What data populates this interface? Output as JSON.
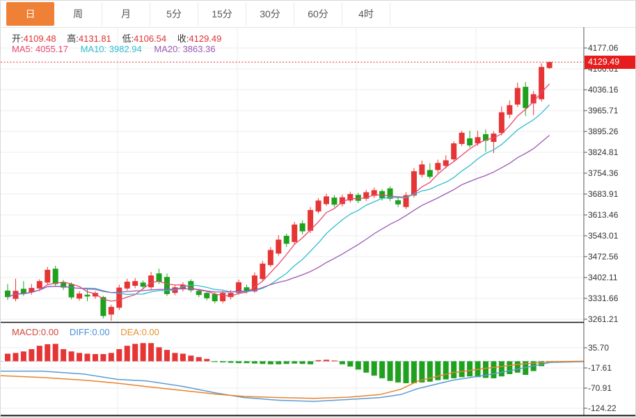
{
  "tabs": [
    {
      "label": "日",
      "name": "tab-day",
      "selected": true
    },
    {
      "label": "周",
      "name": "tab-week",
      "selected": false
    },
    {
      "label": "月",
      "name": "tab-month",
      "selected": false
    },
    {
      "label": "5分",
      "name": "tab-5min",
      "selected": false
    },
    {
      "label": "15分",
      "name": "tab-15min",
      "selected": false
    },
    {
      "label": "30分",
      "name": "tab-30min",
      "selected": false
    },
    {
      "label": "60分",
      "name": "tab-60min",
      "selected": false
    },
    {
      "label": "4时",
      "name": "tab-4hour",
      "selected": false
    }
  ],
  "readouts": {
    "ohlc": {
      "open_label": "开:",
      "open": "4109.48",
      "high_label": "高:",
      "high": "4131.81",
      "low_label": "低:",
      "low": "4106.54",
      "close_label": "收:",
      "close": "4129.49"
    },
    "ma": {
      "ma5": "MA5: 4055.17",
      "ma10": "MA10: 3982.94",
      "ma20": "MA20: 3863.36"
    },
    "macd": {
      "macd": "MACD:0.00",
      "diff": "DIFF:0.00",
      "dea": "DEA:0.00"
    }
  },
  "price_badge": {
    "value": "4129.49"
  },
  "colors": {
    "up": "#e53535",
    "down": "#1fa11f",
    "ma5": "#e8476f",
    "ma10": "#2fbccf",
    "ma20": "#9b59b6",
    "diff_line": "#5b9bd5",
    "dea_line": "#e8832a",
    "accent_tab": "#ef8137",
    "price_line": "#e23030",
    "badge_bg": "#e71c1c",
    "grid": "#ededed",
    "axis": "#555555",
    "zero_dash": "#aac8dc",
    "macd_label": "#d2453a",
    "diff_label": "#4a90d9",
    "dea_label": "#e8902e"
  },
  "chart_data": {
    "type": "candlestick+macd",
    "timeframe": "日",
    "main": {
      "title": "",
      "y_ticks": [
        4177.06,
        4106.61,
        4036.16,
        3965.71,
        3895.26,
        3824.81,
        3754.36,
        3683.91,
        3613.46,
        3543.01,
        3472.56,
        3402.11,
        3331.66,
        3261.21
      ],
      "current_price": 4129.49,
      "ma_periods": [
        5,
        10,
        20
      ],
      "candles_format": [
        "open",
        "close",
        "low",
        "high"
      ],
      "candles": [
        [
          3358,
          3336,
          3326,
          3380
        ],
        [
          3330,
          3357,
          3322,
          3398
        ],
        [
          3364,
          3349,
          3340,
          3390
        ],
        [
          3352,
          3367,
          3344,
          3380
        ],
        [
          3365,
          3390,
          3356,
          3396
        ],
        [
          3385,
          3428,
          3378,
          3438
        ],
        [
          3432,
          3380,
          3372,
          3442
        ],
        [
          3387,
          3368,
          3360,
          3394
        ],
        [
          3380,
          3335,
          3328,
          3386
        ],
        [
          3331,
          3348,
          3324,
          3356
        ],
        [
          3344,
          3338,
          3322,
          3365
        ],
        [
          3338,
          3350,
          3330,
          3356
        ],
        [
          3336,
          3272,
          3264,
          3340
        ],
        [
          3277,
          3303,
          3256,
          3310
        ],
        [
          3300,
          3368,
          3292,
          3378
        ],
        [
          3365,
          3388,
          3358,
          3398
        ],
        [
          3374,
          3390,
          3366,
          3400
        ],
        [
          3385,
          3371,
          3362,
          3392
        ],
        [
          3369,
          3409,
          3362,
          3421
        ],
        [
          3416,
          3388,
          3380,
          3432
        ],
        [
          3404,
          3346,
          3340,
          3416
        ],
        [
          3350,
          3369,
          3342,
          3378
        ],
        [
          3362,
          3378,
          3355,
          3386
        ],
        [
          3390,
          3359,
          3352,
          3396
        ],
        [
          3357,
          3343,
          3336,
          3364
        ],
        [
          3350,
          3332,
          3325,
          3356
        ],
        [
          3346,
          3322,
          3315,
          3352
        ],
        [
          3322,
          3350,
          3315,
          3358
        ],
        [
          3336,
          3350,
          3328,
          3360
        ],
        [
          3350,
          3386,
          3344,
          3395
        ],
        [
          3369,
          3355,
          3348,
          3378
        ],
        [
          3355,
          3409,
          3350,
          3420
        ],
        [
          3397,
          3449,
          3390,
          3458
        ],
        [
          3444,
          3495,
          3438,
          3505
        ],
        [
          3483,
          3530,
          3476,
          3545
        ],
        [
          3543,
          3516,
          3505,
          3550
        ],
        [
          3522,
          3581,
          3515,
          3590
        ],
        [
          3585,
          3558,
          3548,
          3595
        ],
        [
          3560,
          3630,
          3552,
          3640
        ],
        [
          3625,
          3662,
          3618,
          3670
        ],
        [
          3650,
          3676,
          3644,
          3685
        ],
        [
          3672,
          3648,
          3640,
          3680
        ],
        [
          3650,
          3673,
          3642,
          3682
        ],
        [
          3662,
          3684,
          3655,
          3692
        ],
        [
          3681,
          3661,
          3653,
          3688
        ],
        [
          3668,
          3690,
          3660,
          3698
        ],
        [
          3678,
          3697,
          3670,
          3706
        ],
        [
          3694,
          3670,
          3662,
          3700
        ],
        [
          3703,
          3668,
          3660,
          3710
        ],
        [
          3663,
          3649,
          3640,
          3676
        ],
        [
          3640,
          3680,
          3633,
          3690
        ],
        [
          3679,
          3761,
          3672,
          3772
        ],
        [
          3749,
          3784,
          3740,
          3797
        ],
        [
          3765,
          3742,
          3735,
          3788
        ],
        [
          3765,
          3789,
          3755,
          3800
        ],
        [
          3779,
          3798,
          3770,
          3815
        ],
        [
          3801,
          3855,
          3795,
          3862
        ],
        [
          3853,
          3891,
          3846,
          3898
        ],
        [
          3872,
          3848,
          3840,
          3898
        ],
        [
          3855,
          3876,
          3847,
          3898
        ],
        [
          3886,
          3864,
          3827,
          3902
        ],
        [
          3860,
          3888,
          3822,
          3896
        ],
        [
          3890,
          3960,
          3882,
          3980
        ],
        [
          3952,
          3984,
          3940,
          4000
        ],
        [
          3986,
          4042,
          3978,
          4060
        ],
        [
          4046,
          3974,
          3948,
          4062
        ],
        [
          3990,
          4021,
          3950,
          4032
        ],
        [
          4004,
          4113,
          3996,
          4126
        ],
        [
          4109.48,
          4129.49,
          4106.54,
          4131.81
        ]
      ]
    },
    "macd": {
      "y_ticks": [
        35.7,
        -17.61,
        -70.91,
        -124.22
      ],
      "histogram": [
        20,
        22,
        26,
        32,
        41,
        45,
        46,
        32,
        26,
        22,
        20,
        19,
        19,
        22,
        32,
        41,
        46,
        48,
        48,
        37,
        30,
        22,
        20,
        15,
        11,
        6,
        -2,
        -3,
        -4,
        -5,
        -5,
        -6,
        -7,
        -8,
        -8,
        -7,
        -6,
        -7,
        -8,
        3,
        4,
        2,
        -8,
        -14,
        -22,
        -30,
        -38,
        -45,
        -52,
        -56,
        -58,
        -58,
        -56,
        -54,
        -50,
        -48,
        -45,
        -42,
        -40,
        -42,
        -44,
        -45,
        -40,
        -34,
        -30,
        -36,
        -26,
        -13,
        -4
      ],
      "diff": [
        [
          0,
          -26
        ],
        [
          60,
          -26
        ],
        [
          120,
          -34
        ],
        [
          168,
          -48
        ],
        [
          210,
          -52
        ],
        [
          260,
          -66
        ],
        [
          310,
          -84
        ],
        [
          350,
          -96
        ],
        [
          400,
          -103
        ],
        [
          450,
          -106
        ],
        [
          500,
          -101
        ],
        [
          545,
          -96
        ],
        [
          575,
          -88
        ],
        [
          600,
          -72
        ],
        [
          650,
          -50
        ],
        [
          700,
          -36
        ],
        [
          745,
          -20
        ],
        [
          790,
          -3
        ],
        [
          838,
          -1
        ]
      ],
      "dea": [
        [
          0,
          -38
        ],
        [
          60,
          -43
        ],
        [
          120,
          -50
        ],
        [
          168,
          -58
        ],
        [
          210,
          -67
        ],
        [
          260,
          -77
        ],
        [
          310,
          -87
        ],
        [
          350,
          -93
        ],
        [
          400,
          -96
        ],
        [
          450,
          -98
        ],
        [
          500,
          -95
        ],
        [
          545,
          -88
        ],
        [
          575,
          -74
        ],
        [
          600,
          -52
        ],
        [
          650,
          -30
        ],
        [
          700,
          -18
        ],
        [
          745,
          -8
        ],
        [
          790,
          -1
        ],
        [
          838,
          0
        ]
      ]
    }
  }
}
